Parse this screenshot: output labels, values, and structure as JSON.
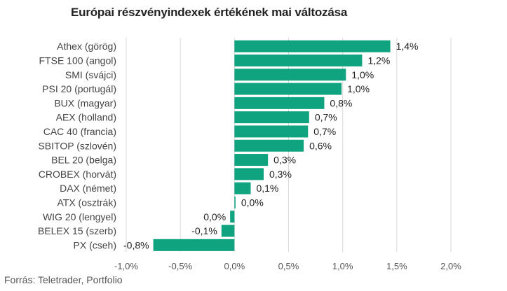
{
  "chart_data": {
    "type": "bar",
    "orientation": "horizontal",
    "title": "Európai részvényindexek értékének mai változása",
    "source": "Forrás: Teletrader, Portfolio",
    "categories": [
      "Athex (görög)",
      "FTSE 100 (angol)",
      "SMI (svájci)",
      "PSI 20 (portugál)",
      "BUX (magyar)",
      "AEX (holland)",
      "CAC 40 (francia)",
      "SBITOP (szlovén)",
      "BEL 20 (belga)",
      "CROBEX (horvát)",
      "DAX (német)",
      "ATX (osztrák)",
      "WIG 20 (lengyel)",
      "BELEX 15 (szerb)",
      "PX (cseh)"
    ],
    "values": [
      1.44,
      1.18,
      1.03,
      0.99,
      0.83,
      0.69,
      0.68,
      0.64,
      0.31,
      0.27,
      0.15,
      0.01,
      -0.04,
      -0.12,
      -0.75
    ],
    "data_labels": [
      "1,4%",
      "1,2%",
      "1,0%",
      "1,0%",
      "0,8%",
      "0,7%",
      "0,7%",
      "0,6%",
      "0,3%",
      "0,3%",
      "0,1%",
      "0,0%",
      "0,0%",
      "-0,1%",
      "-0,8%"
    ],
    "xlim": [
      -1.0,
      2.0
    ],
    "xticks": [
      -1.0,
      -0.5,
      0.0,
      0.5,
      1.0,
      1.5,
      2.0
    ],
    "xtick_labels": [
      "-1,0%",
      "-0,5%",
      "0,0%",
      "0,5%",
      "1,0%",
      "1,5%",
      "2,0%"
    ],
    "grid": "vertical",
    "bar_color": "#10a37f",
    "grid_color": "#d9d9d9"
  }
}
